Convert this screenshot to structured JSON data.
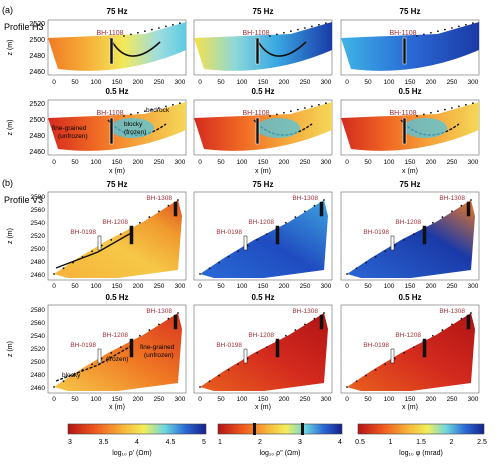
{
  "section_labels": [
    "(a)",
    "(b)"
  ],
  "profile_labels": [
    "Profile H3",
    "Profile V3"
  ],
  "panel_titles": {
    "h3_row1": [
      "75 Hz",
      "75 Hz",
      "75 Hz"
    ],
    "h3_row2": [
      "0.5 Hz",
      "0.5 Hz",
      "0.5 Hz"
    ],
    "v3_row1": [
      "75 Hz",
      "75 Hz",
      "75 Hz"
    ],
    "v3_row2": [
      "0.5 Hz",
      "0.5 Hz",
      "0.5 Hz"
    ]
  },
  "axis_labels": {
    "z": "z (m)",
    "x": "x (m)"
  },
  "ticks": {
    "h3_z": [
      "2520",
      "2500",
      "2480",
      "2460"
    ],
    "v3_z": [
      "2580",
      "2560",
      "2540",
      "2520",
      "2500",
      "2480",
      "2460"
    ],
    "x": [
      "0",
      "50",
      "100",
      "150",
      "200",
      "250",
      "300"
    ]
  },
  "boreholes": {
    "h3": [
      "BH-1108"
    ],
    "v3": [
      "BH-1308",
      "BH-1208",
      "BH-0198"
    ]
  },
  "annotations": {
    "bedrock": "bedrock",
    "fine_unfrozen": "fine-grained",
    "fine_unfrozen_2": "(unfrozen)",
    "blocky_frozen": "blocky",
    "blocky_frozen_2": "(frozen)",
    "frozen": "(frozen)"
  },
  "colorbars": [
    {
      "ticks": [
        "3",
        "3.5",
        "4",
        "4.5",
        "5"
      ],
      "label": "log₁₀ ρ' (Ωm)"
    },
    {
      "ticks": [
        "1",
        "2",
        "3",
        "4"
      ],
      "label": "log₁₀ ρ'' (Ωm)"
    },
    {
      "ticks": [
        "0.5",
        "1",
        "1.5",
        "2",
        "2.5"
      ],
      "label": "log₁₀ φ (mrad)"
    }
  ],
  "colors": {
    "red": "#c81e1e",
    "orange": "#f08a24",
    "yellow": "#f6e64a",
    "cyan": "#4fd2e6",
    "blue": "#2a5fd0",
    "darkblue": "#19279a",
    "borehole_text": "#a0303a"
  }
}
